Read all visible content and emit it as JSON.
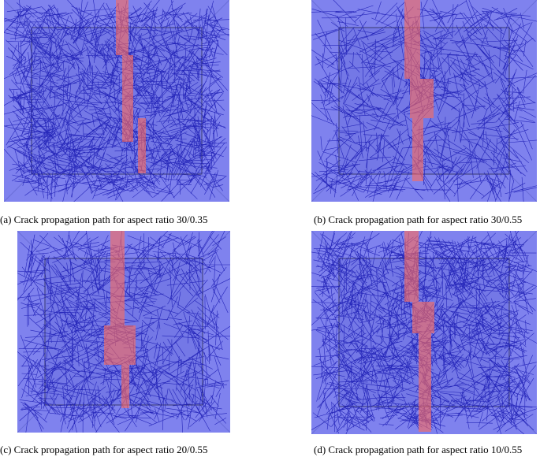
{
  "panels": [
    {
      "caption": "(a) Crack propagation path for aspect ratio 30/0.35"
    },
    {
      "caption": "(b) Crack propagation path for aspect ratio 30/0.55"
    },
    {
      "caption": "(c) Crack propagation path for aspect ratio 20/0.55"
    },
    {
      "caption": "(d) Crack propagation path for aspect ratio 10/0.55"
    }
  ]
}
